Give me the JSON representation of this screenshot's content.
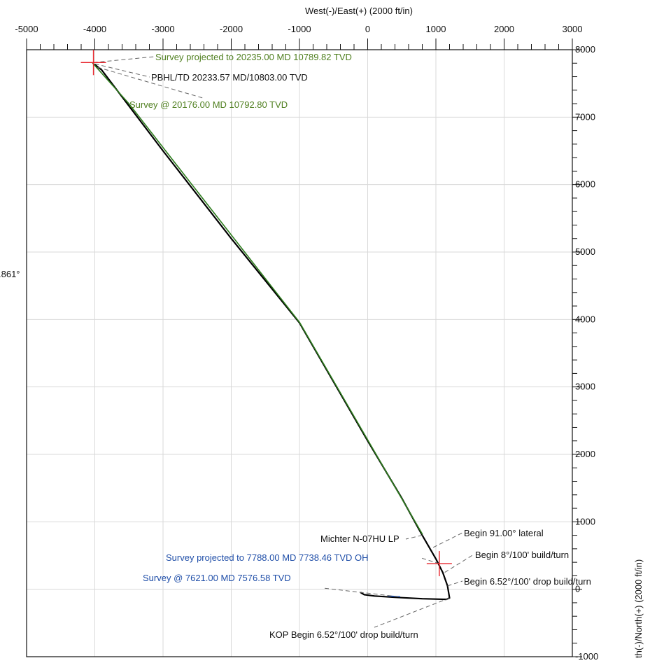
{
  "chart_data": {
    "type": "line",
    "x_axis_title": "West(-)/East(+) (2000 ft/in)",
    "y_axis_title": "th(-)/North(+) (2000 ft/in)",
    "xlim": [
      -5000,
      3000
    ],
    "ylim": [
      -1000,
      8000
    ],
    "x_ticks": [
      -5000,
      -4000,
      -3000,
      -2000,
      -1000,
      0,
      1000,
      2000,
      3000
    ],
    "y_ticks": [
      -1000,
      0,
      1000,
      2000,
      3000,
      4000,
      5000,
      6000,
      7000,
      8000
    ],
    "x_tick_labels": [
      "-5000",
      "-4000",
      "-3000",
      "-2000",
      "-1000",
      "0",
      "1000",
      "2000",
      "3000"
    ],
    "y_tick_labels": [
      "-1000",
      "0",
      "1000",
      "2000",
      "3000",
      "4000",
      "5000",
      "6000",
      "7000",
      "8000"
    ],
    "grid": true,
    "left_edge_text": ".861°",
    "series": [
      {
        "color": "#000000",
        "points": [
          [
            -100,
            -50
          ],
          [
            -50,
            -80
          ],
          [
            100,
            -100
          ],
          [
            400,
            -120
          ],
          [
            800,
            -140
          ],
          [
            1150,
            -150
          ],
          [
            1200,
            -130
          ],
          [
            1170,
            50
          ],
          [
            1100,
            250
          ],
          [
            1000,
            450
          ],
          [
            800,
            800
          ],
          [
            500,
            1350
          ],
          [
            0,
            2200
          ],
          [
            -1000,
            3950
          ],
          [
            -2000,
            5200
          ],
          [
            -3000,
            6500
          ],
          [
            -3900,
            7700
          ],
          [
            -4000,
            7780
          ]
        ]
      },
      {
        "color": "#2e7d1e",
        "points": [
          [
            800,
            820
          ],
          [
            -1000,
            3960
          ],
          [
            -2500,
            5900
          ],
          [
            -3500,
            7200
          ],
          [
            -4030,
            7800
          ]
        ]
      },
      {
        "color": "#1f4ea8",
        "points": [
          [
            300,
            -100
          ],
          [
            470,
            -110
          ]
        ]
      }
    ],
    "targets": [
      {
        "x": -4020,
        "y": 7810
      },
      {
        "x": 1050,
        "y": 380
      }
    ],
    "annotations": [
      {
        "text": "Survey projected to 20235.00 MD 10789.82 TVD",
        "color": "#4f7f1f",
        "point": [
          -4020,
          7810
        ]
      },
      {
        "text": "PBHL/TD 20233.57 MD/10803.00 TVD",
        "color": "#111111",
        "point": [
          -4000,
          7790
        ]
      },
      {
        "text": "Survey @ 20176.00 MD 10792.80 TVD",
        "color": "#4f7f1f",
        "point": [
          -3960,
          7740
        ]
      },
      {
        "text": "Michter N-07HU LP",
        "color": "#111111",
        "point": [
          800,
          800
        ]
      },
      {
        "text": "Begin 91.00° lateral",
        "color": "#111111",
        "point": [
          960,
          620
        ]
      },
      {
        "text": "Survey projected to 7788.00 MD 7738.46 TVD OH",
        "color": "#1f4ea8",
        "point": [
          1050,
          380
        ]
      },
      {
        "text": "Begin 8°/100'  build/turn",
        "color": "#111111",
        "point": [
          1130,
          250
        ]
      },
      {
        "text": "Survey @ 7621.00 MD 7576.58 TVD",
        "color": "#1f4ea8",
        "point": [
          450,
          -110
        ]
      },
      {
        "text": "Begin 6.52°/100' drop build/turn",
        "color": "#111111",
        "point": [
          1170,
          50
        ]
      },
      {
        "text": "KOP Begin 6.52°/100' drop build/turn",
        "color": "#111111",
        "point": [
          1200,
          -130
        ]
      }
    ],
    "colors": {
      "grid": "#d9d9d9",
      "axis": "#111111",
      "target_marker": "#e8232b"
    }
  }
}
